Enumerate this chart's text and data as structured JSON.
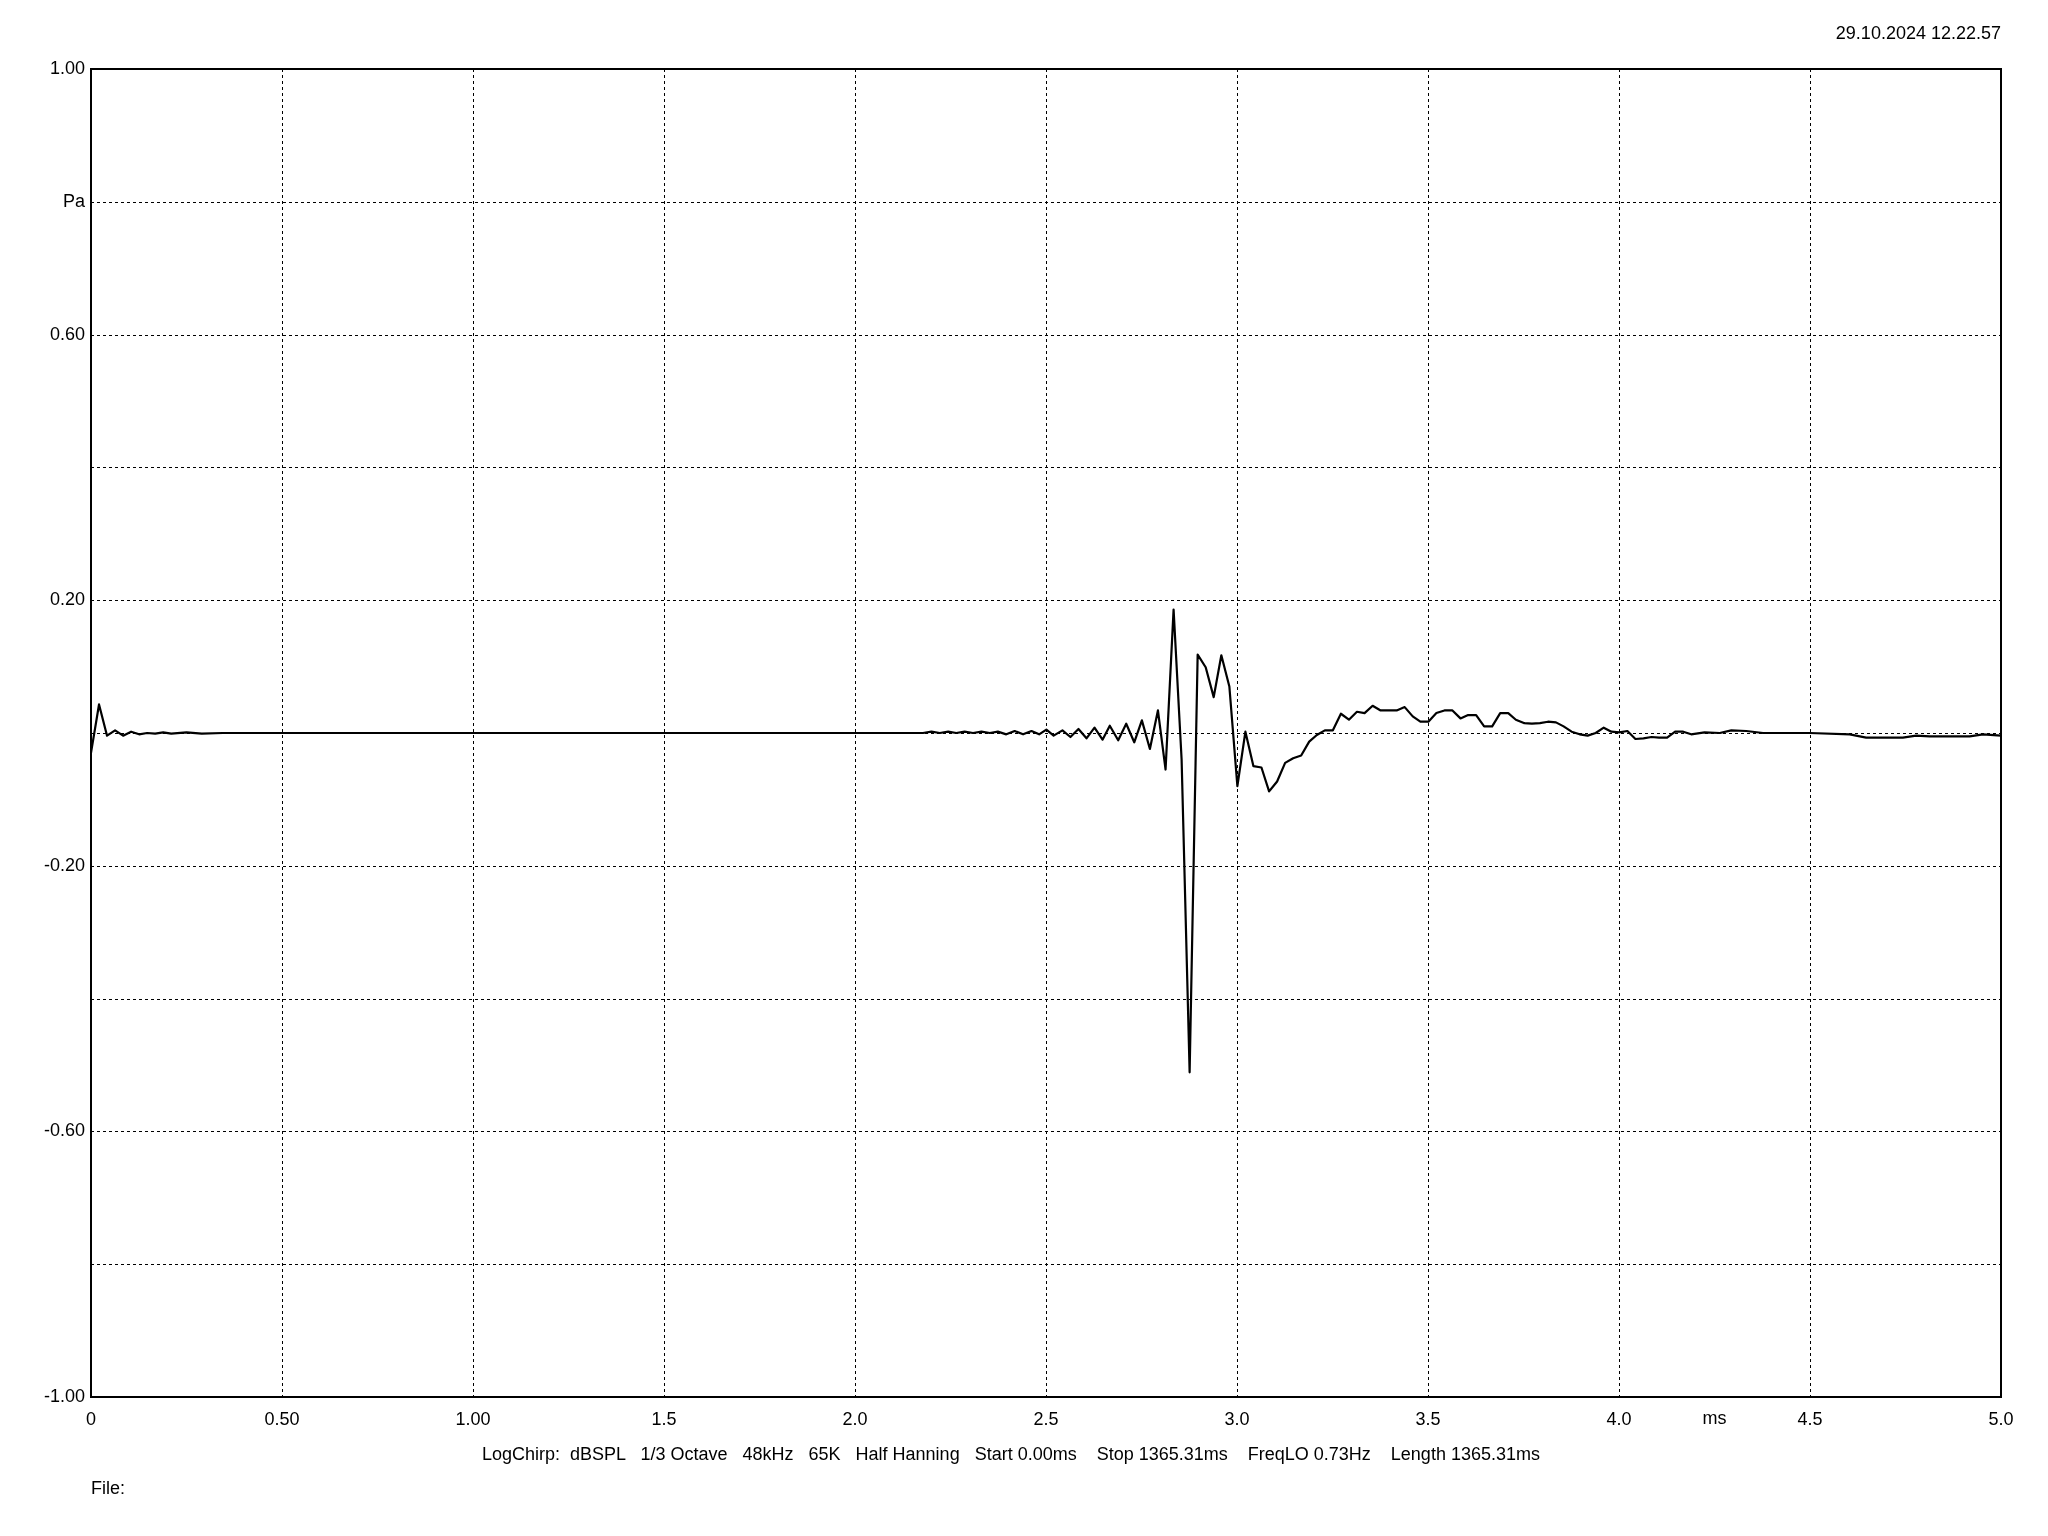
{
  "chart_data": {
    "type": "line",
    "xlabel": "ms",
    "ylabel": "Pa",
    "annotations": [
      "29.10.2024 12.22.57",
      "LogChirp:  dBSPL   1/3 Octave   48kHz   65K   Half Hanning   Start 0.00ms    Stop 1365.31ms    FreqLO 0.73Hz    Length 1365.31ms",
      "File:"
    ],
    "x": [
      0,
      0.021,
      0.042,
      0.063,
      0.084,
      0.105,
      0.126,
      0.147,
      0.168,
      0.189,
      0.21,
      0.25,
      0.29,
      0.345,
      2.178,
      2.2,
      2.222,
      2.244,
      2.265,
      2.287,
      2.309,
      2.331,
      2.353,
      2.374,
      2.396,
      2.418,
      2.44,
      2.462,
      2.482,
      2.501,
      2.52,
      2.543,
      2.564,
      2.585,
      2.606,
      2.627,
      2.648,
      2.667,
      2.689,
      2.71,
      2.731,
      2.751,
      2.772,
      2.793,
      2.813,
      2.834,
      2.855,
      2.876,
      2.897,
      2.918,
      2.939,
      2.959,
      2.98,
      3.001,
      3.022,
      3.043,
      3.064,
      3.084,
      3.105,
      3.126,
      3.147,
      3.168,
      3.189,
      3.209,
      3.23,
      3.251,
      3.272,
      3.293,
      3.314,
      3.334,
      3.355,
      3.376,
      3.397,
      3.418,
      3.439,
      3.46,
      3.48,
      3.501,
      3.522,
      3.543,
      3.564,
      3.585,
      3.605,
      3.626,
      3.647,
      3.668,
      3.689,
      3.71,
      3.73,
      3.751,
      3.772,
      3.793,
      3.814,
      3.835,
      3.855,
      3.876,
      3.897,
      3.918,
      3.939,
      3.96,
      3.98,
      4.001,
      4.022,
      4.043,
      4.064,
      4.085,
      4.105,
      4.126,
      4.147,
      4.168,
      4.189,
      4.224,
      4.264,
      4.294,
      4.333,
      4.377,
      4.438,
      4.499,
      4.604,
      4.647,
      4.743,
      4.778,
      4.813,
      4.918,
      4.953,
      5
    ],
    "values": [
      -0.03,
      0.043,
      -0.004,
      0.004,
      -0.004,
      0.002,
      -0.002,
      0,
      -0.001,
      0.001,
      -0.001,
      0.001,
      -0.001,
      0,
      0,
      0.002,
      0,
      0.002,
      0,
      0.002,
      0,
      0.002,
      0,
      0.002,
      -0.002,
      0.003,
      -0.002,
      0.003,
      -0.002,
      0.005,
      -0.004,
      0.004,
      -0.006,
      0.006,
      -0.008,
      0.008,
      -0.01,
      0.011,
      -0.011,
      0.014,
      -0.014,
      0.019,
      -0.024,
      0.034,
      -0.055,
      0.186,
      -0.04,
      -0.511,
      0.118,
      0.099,
      0.054,
      0.117,
      0.07,
      -0.08,
      0.002,
      -0.05,
      -0.052,
      -0.088,
      -0.073,
      -0.045,
      -0.038,
      -0.034,
      -0.013,
      -0.003,
      0.004,
      0.004,
      0.029,
      0.02,
      0.032,
      0.03,
      0.041,
      0.034,
      0.034,
      0.034,
      0.039,
      0.025,
      0.017,
      0.017,
      0.03,
      0.034,
      0.034,
      0.022,
      0.027,
      0.027,
      0.01,
      0.01,
      0.03,
      0.03,
      0.02,
      0.015,
      0.014,
      0.015,
      0.017,
      0.016,
      0.01,
      0.002,
      -0.002,
      -0.004,
      0,
      0.008,
      0.002,
      0.001,
      0.003,
      -0.009,
      -0.008,
      -0.006,
      -0.007,
      -0.007,
      0.002,
      0.002,
      -0.002,
      0.001,
      0,
      0.004,
      0.003,
      0,
      0,
      0,
      -0.002,
      -0.007,
      -0.007,
      -0.004,
      -0.005,
      -0.005,
      -0.002,
      -0.004
    ],
    "color": "#000000",
    "xlim": [
      0,
      5
    ],
    "ylim": [
      -1,
      1
    ],
    "xticks": [
      0,
      {
        "value": 0.5,
        "label": "0.50"
      },
      {
        "value": 1,
        "label": "1.00"
      },
      1.5,
      {
        "value": 2,
        "label": "2.0"
      },
      2.5,
      {
        "value": 3,
        "label": "3.0"
      },
      3.5,
      {
        "value": 4,
        "label": "4.0"
      },
      4.5,
      {
        "value": 5,
        "label": "5.0"
      }
    ],
    "yticks": [
      {
        "value": -1,
        "label": "-1.00"
      },
      {
        "value": -0.8,
        "label": null
      },
      {
        "value": -0.6,
        "label": "-0.60"
      },
      {
        "value": -0.4,
        "label": null
      },
      {
        "value": -0.2,
        "label": "-0.20"
      },
      {
        "value": 0,
        "label": null
      },
      {
        "value": 0.2,
        "label": "0.20"
      },
      {
        "value": 0.4,
        "label": null
      },
      {
        "value": 0.6,
        "label": "0.60"
      },
      {
        "value": 0.8,
        "label": null
      },
      {
        "value": 1,
        "label": "1.00"
      }
    ],
    "grid": true,
    "legend": false,
    "marker": "none",
    "line_style": "solid"
  }
}
